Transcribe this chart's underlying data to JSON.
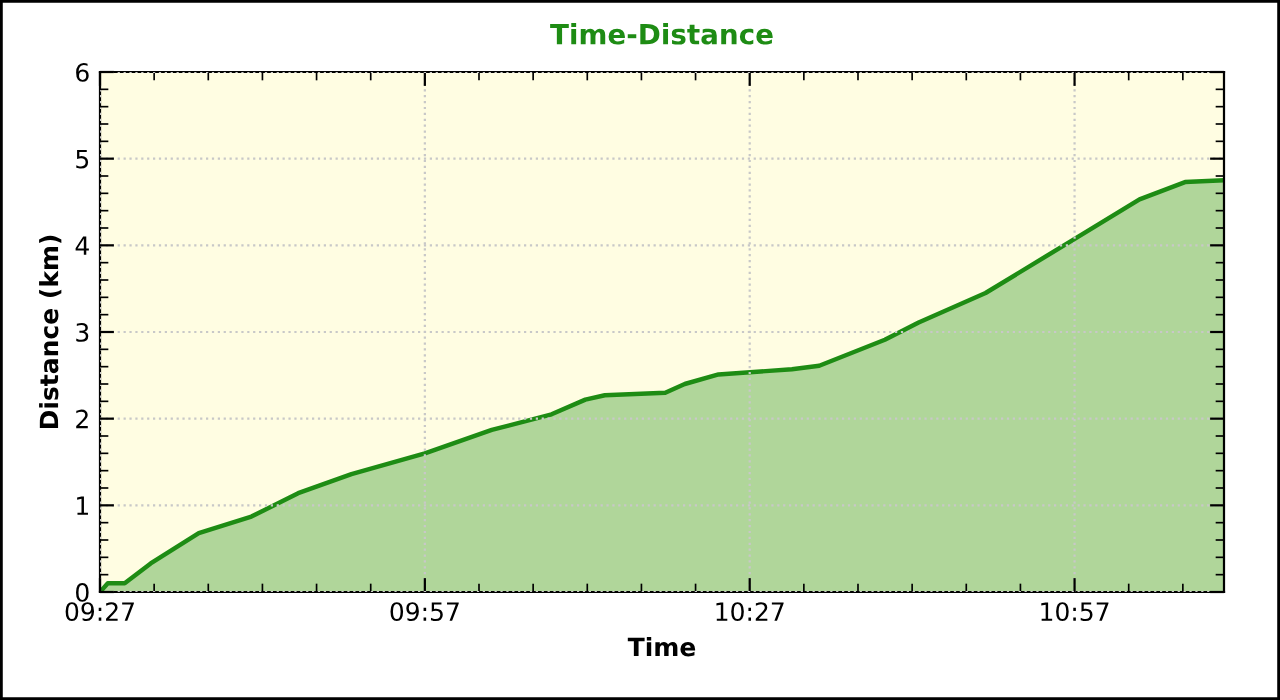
{
  "chart_data": {
    "type": "area",
    "title": "Time-Distance",
    "xlabel": "Time",
    "ylabel": "Distance (km)",
    "x": [
      9.45,
      9.462,
      9.488,
      9.528,
      9.602,
      9.683,
      9.755,
      9.837,
      9.95,
      10.053,
      10.145,
      10.197,
      10.227,
      10.32,
      10.35,
      10.402,
      10.515,
      10.557,
      10.658,
      10.71,
      10.813,
      10.947,
      11.05,
      11.12,
      11.18
    ],
    "series": [
      {
        "color": "#1e8c14",
        "values": [
          0,
          0.1,
          0.1,
          0.33,
          0.68,
          0.87,
          1.14,
          1.36,
          1.6,
          1.87,
          2.05,
          2.22,
          2.27,
          2.3,
          2.4,
          2.51,
          2.57,
          2.61,
          2.91,
          3.11,
          3.45,
          4.06,
          4.53,
          4.73,
          4.75
        ]
      }
    ],
    "xlim": [
      9.45,
      11.18
    ],
    "ylim": [
      0,
      6
    ],
    "xticks": [
      {
        "value": 9.45,
        "label": "09:27"
      },
      {
        "value": 9.95,
        "label": "09:57"
      },
      {
        "value": 10.45,
        "label": "10:27"
      },
      {
        "value": 10.95,
        "label": "10:57"
      }
    ],
    "yticks": [
      0,
      1,
      2,
      3,
      4,
      5,
      6
    ],
    "grid": true,
    "legend": false
  }
}
